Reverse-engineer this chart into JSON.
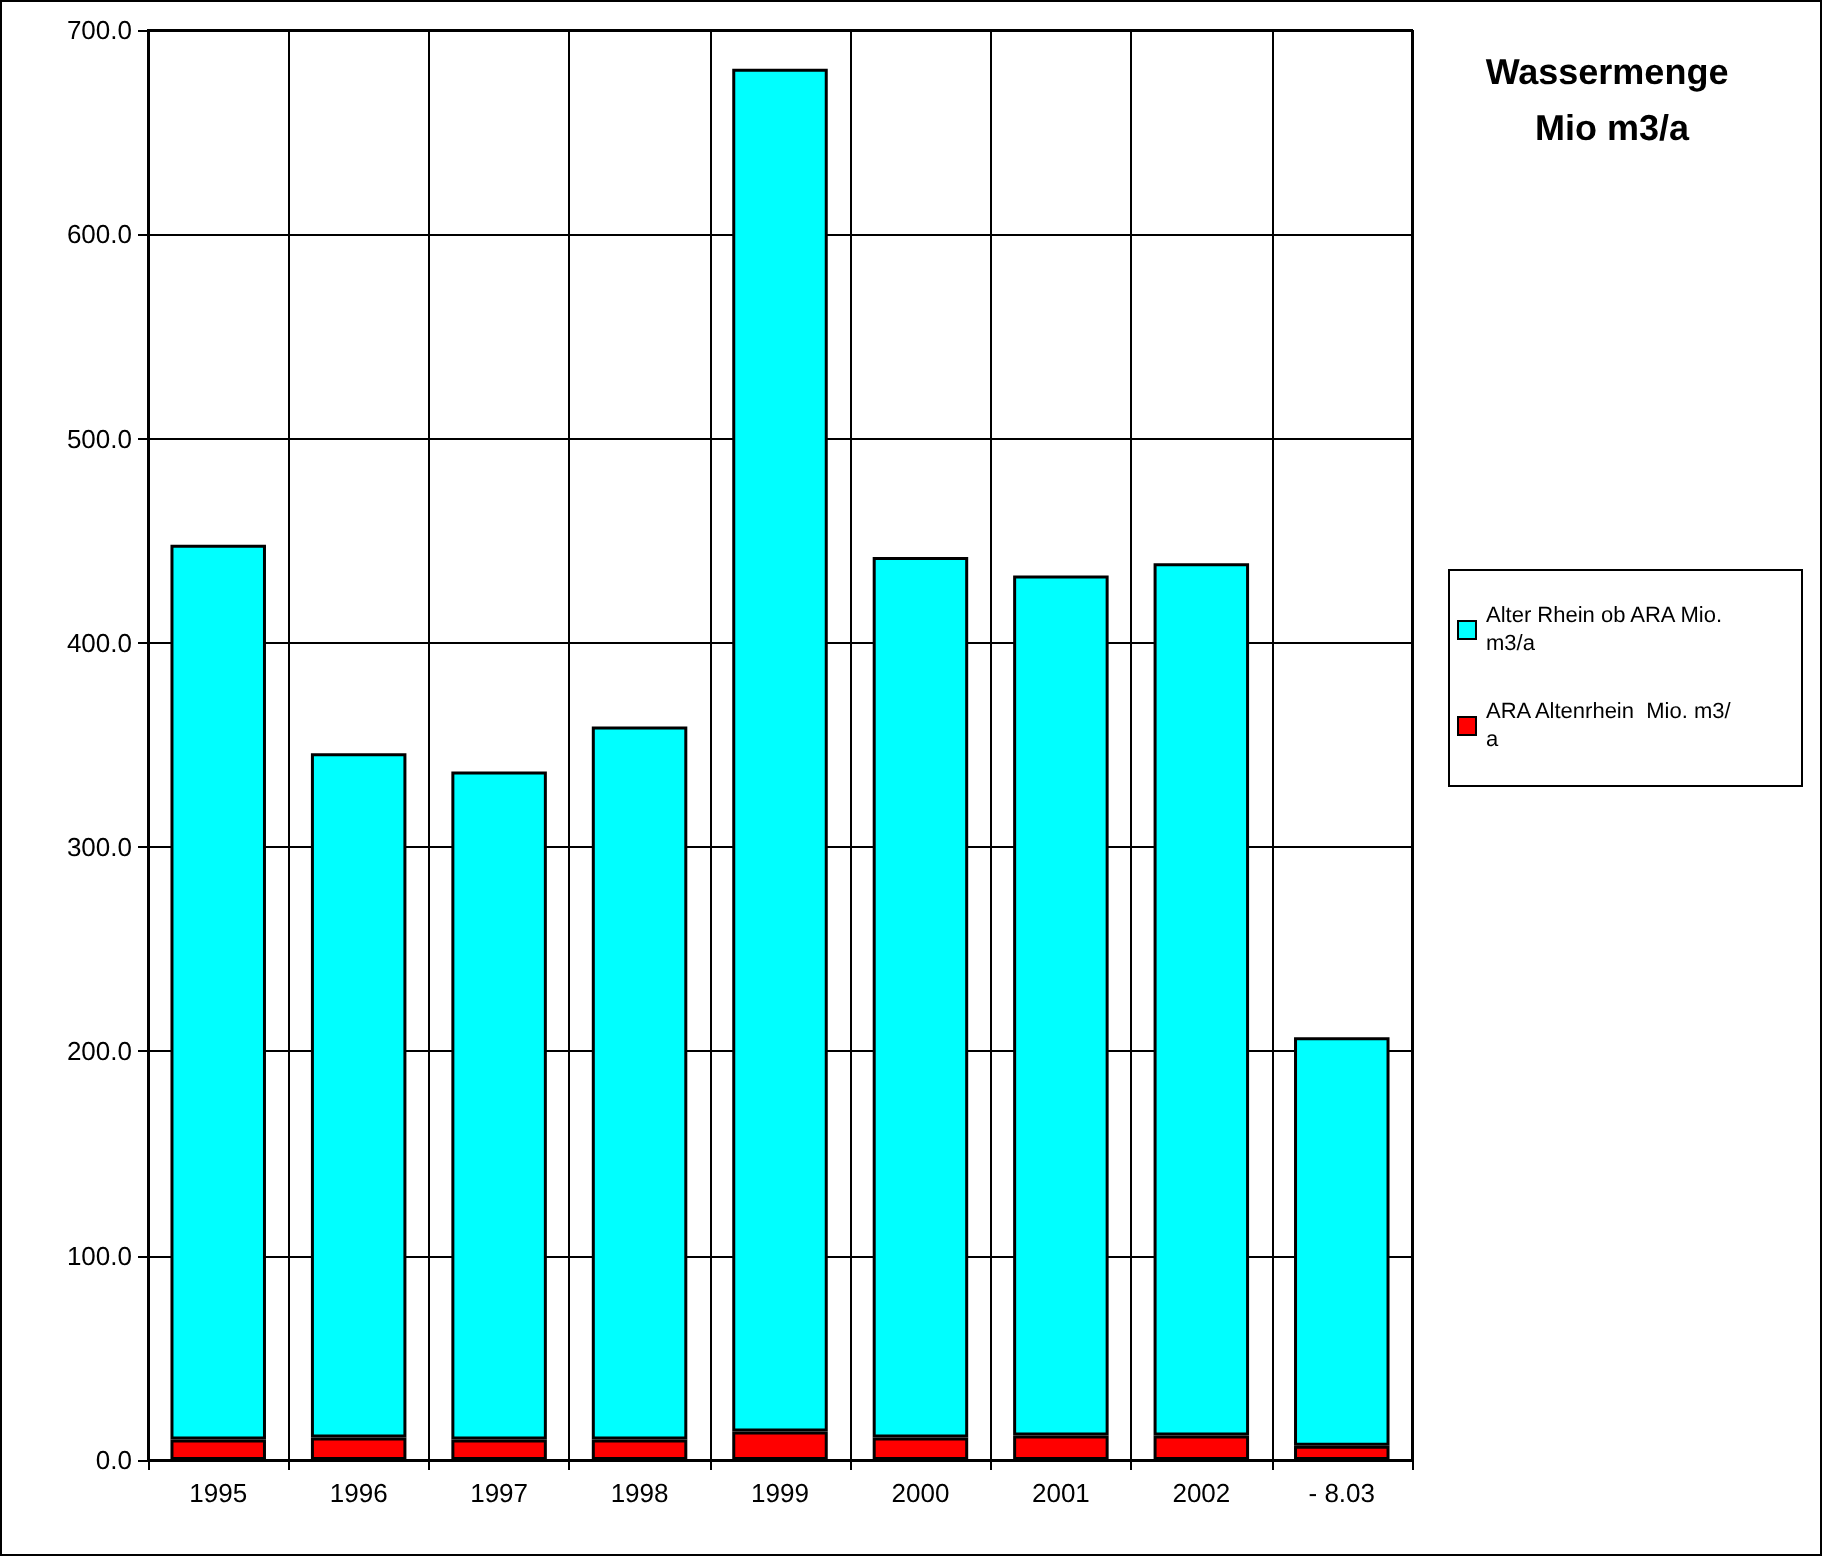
{
  "chart_data": {
    "type": "bar",
    "title": "Wassermenge Mio m3/a",
    "categories": [
      "1995",
      "1996",
      "1997",
      "1998",
      "1999",
      "2000",
      "2001",
      "2002",
      "- 8.03"
    ],
    "stacked": true,
    "series": [
      {
        "name": "ARA Altenrhein  Mio. m3/a",
        "color": "#ff0000",
        "values": [
          10,
          11,
          10,
          10,
          14,
          11,
          12,
          12,
          7
        ]
      },
      {
        "name": "Alter Rhein ob ARA Mio. m3/a",
        "color": "#00ffff",
        "values": [
          438,
          335,
          327,
          349,
          667,
          431,
          421,
          427,
          200
        ]
      }
    ],
    "ylim": [
      0,
      700
    ],
    "yticks": [
      {
        "value": 0,
        "label": "0.0"
      },
      {
        "value": 100,
        "label": "100.0"
      },
      {
        "value": 200,
        "label": "200.0"
      },
      {
        "value": 300,
        "label": "300.0"
      },
      {
        "value": 400,
        "label": "400.0"
      },
      {
        "value": 500,
        "label": "500.0"
      },
      {
        "value": 600,
        "label": "600.0"
      },
      {
        "value": 700,
        "label": "700.0"
      }
    ],
    "grid": true,
    "legend": "right"
  }
}
